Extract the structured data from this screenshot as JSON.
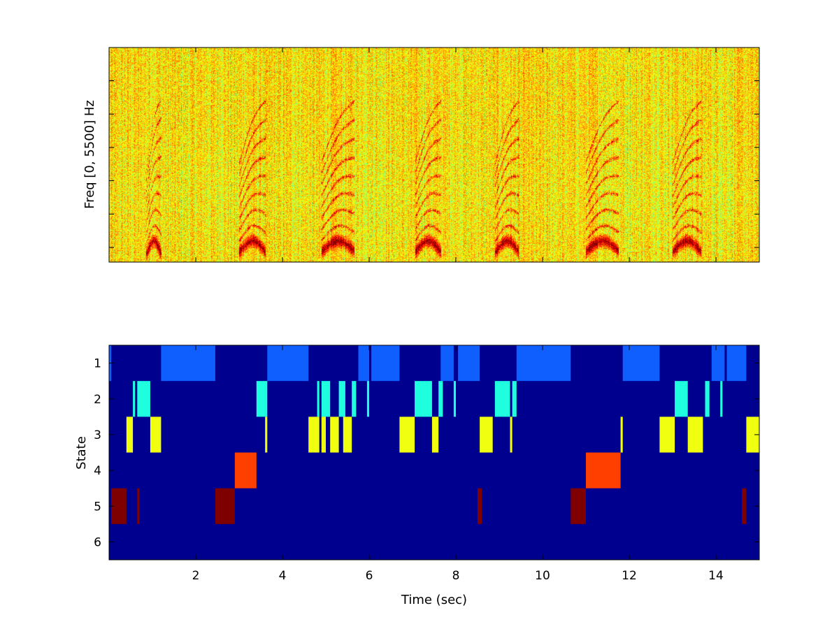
{
  "chart_data": [
    {
      "type": "heatmap",
      "ylabel": "Freq [0, 5500] Hz",
      "xlim": [
        0,
        15
      ],
      "colormap": "jet",
      "x_ticks": [
        2,
        4,
        6,
        8,
        10,
        12,
        14
      ],
      "y_tick_count": 6,
      "x_tick_labels_shown": false,
      "y_tick_labels_shown": false,
      "background_level": 0.65,
      "features": [
        {
          "name": "harmonic stack",
          "t": 0.9,
          "t_end": 1.15
        },
        {
          "name": "harmonic stack",
          "t": 3.05,
          "t_end": 3.55
        },
        {
          "name": "harmonic stack",
          "t": 4.95,
          "t_end": 5.6
        },
        {
          "name": "harmonic stack",
          "t": 7.1,
          "t_end": 7.6
        },
        {
          "name": "harmonic stack",
          "t": 8.95,
          "t_end": 9.4
        },
        {
          "name": "harmonic stack",
          "t": 11.05,
          "t_end": 11.7
        },
        {
          "name": "harmonic stack",
          "t": 13.05,
          "t_end": 13.6
        }
      ]
    },
    {
      "type": "heatmap",
      "xlabel": "Time (sec)",
      "ylabel": "State",
      "xlim": [
        0,
        15
      ],
      "x_ticks": [
        2,
        4,
        6,
        8,
        10,
        12,
        14
      ],
      "y_ticks": [
        1,
        2,
        3,
        4,
        5,
        6
      ],
      "background_color": "#00008f",
      "states": [
        {
          "state": 1,
          "color": "#0f5fff",
          "segments": [
            [
              0.0,
              0.05
            ],
            [
              1.2,
              2.45
            ],
            [
              3.65,
              4.6
            ],
            [
              5.75,
              6.0
            ],
            [
              6.05,
              6.7
            ],
            [
              7.65,
              7.95
            ],
            [
              8.05,
              8.55
            ],
            [
              9.4,
              10.65
            ],
            [
              11.85,
              12.7
            ],
            [
              13.9,
              14.2
            ],
            [
              14.25,
              14.7
            ]
          ]
        },
        {
          "state": 2,
          "color": "#1fffdf",
          "segments": [
            [
              0.55,
              0.6
            ],
            [
              0.65,
              0.95
            ],
            [
              3.4,
              3.65
            ],
            [
              4.8,
              4.85
            ],
            [
              4.9,
              5.1
            ],
            [
              5.3,
              5.45
            ],
            [
              5.6,
              5.7
            ],
            [
              5.95,
              6.0
            ],
            [
              7.05,
              7.45
            ],
            [
              7.6,
              7.7
            ],
            [
              7.95,
              8.0
            ],
            [
              8.9,
              9.25
            ],
            [
              9.3,
              9.4
            ],
            [
              13.05,
              13.35
            ],
            [
              13.75,
              13.85
            ],
            [
              14.1,
              14.15
            ]
          ]
        },
        {
          "state": 3,
          "color": "#efff0f",
          "segments": [
            [
              0.4,
              0.55
            ],
            [
              0.95,
              1.2
            ],
            [
              3.6,
              3.65
            ],
            [
              4.6,
              4.85
            ],
            [
              4.9,
              5.0
            ],
            [
              5.1,
              5.3
            ],
            [
              5.4,
              5.6
            ],
            [
              6.7,
              7.05
            ],
            [
              7.45,
              7.6
            ],
            [
              8.55,
              8.85
            ],
            [
              9.25,
              9.3
            ],
            [
              11.8,
              11.85
            ],
            [
              12.7,
              13.05
            ],
            [
              13.35,
              13.7
            ],
            [
              14.7,
              15.0
            ]
          ]
        },
        {
          "state": 4,
          "color": "#ff3f00",
          "segments": [
            [
              2.9,
              3.4
            ],
            [
              11.0,
              11.8
            ]
          ]
        },
        {
          "state": 5,
          "color": "#7f0000",
          "segments": [
            [
              0.05,
              0.4
            ],
            [
              0.65,
              0.7
            ],
            [
              2.45,
              2.9
            ],
            [
              8.5,
              8.6
            ],
            [
              10.65,
              11.0
            ],
            [
              14.6,
              14.7
            ]
          ]
        },
        {
          "state": 6,
          "color": "#00008f",
          "segments": []
        }
      ]
    }
  ]
}
